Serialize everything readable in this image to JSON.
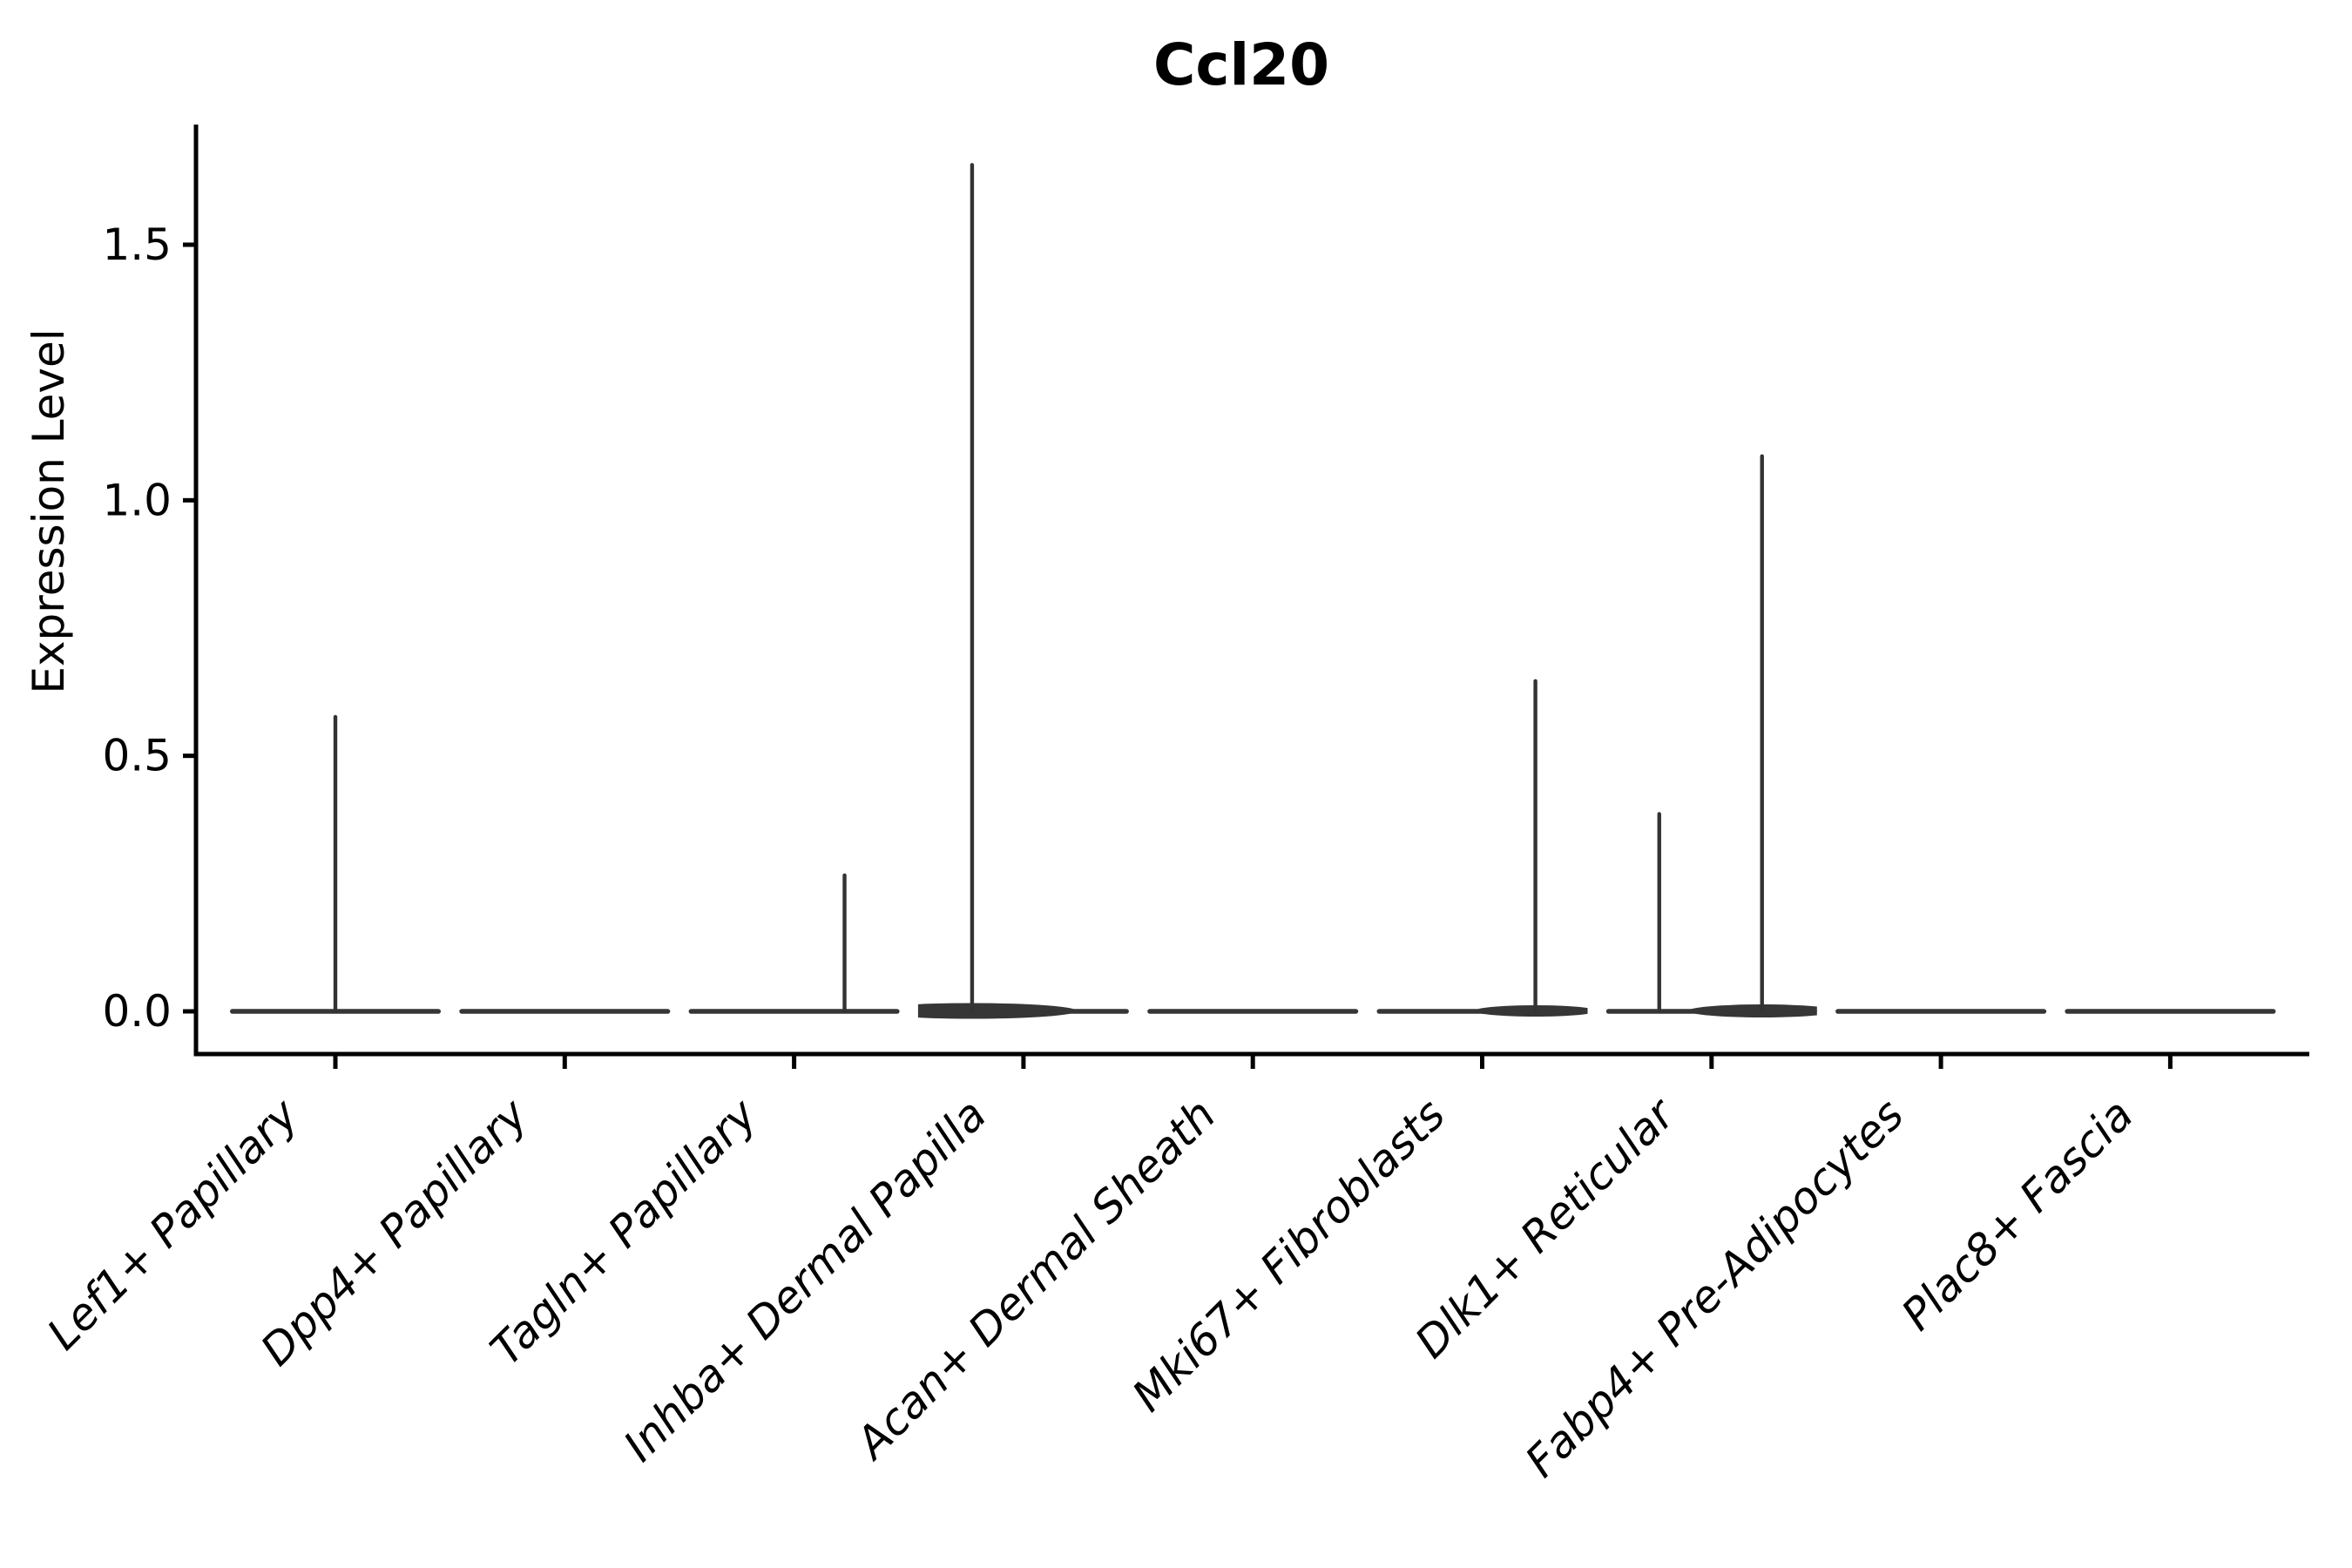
{
  "figure": {
    "title": "Ccl20"
  },
  "chart_data": {
    "type": "violin",
    "title": "Ccl20",
    "xlabel": "",
    "ylabel": "Expression Level",
    "yticks": [
      "0.0",
      "0.5",
      "1.0",
      "1.5"
    ],
    "ytick_values": [
      0.0,
      0.5,
      1.0,
      1.5
    ],
    "ylim": [
      -0.084,
      1.74
    ],
    "grid": false,
    "legend": "none",
    "x_label_rotation_deg": 45,
    "x_label_fontstyle": "italic",
    "categories": [
      "Lef1+ Papillary",
      "Dpp4+ Papillary",
      "Tagln+ Papillary",
      "Inhba+ Dermal Papilla",
      "Acan+ Dermal Sheath",
      "Mki67+ Fibroblasts",
      "Dlk1+ Reticular",
      "Fabp4+ Pre-Adipocytes",
      "Plac8+ Fascia"
    ],
    "violins": [
      {
        "category": "Lef1+ Papillary",
        "body_value": 0.0,
        "spikes": [
          {
            "slot_offset": 0.0,
            "peak_value": 0.58,
            "base_mound": "none"
          }
        ]
      },
      {
        "category": "Dpp4+ Papillary",
        "body_value": 0.0,
        "spikes": []
      },
      {
        "category": "Tagln+ Papillary",
        "body_value": 0.0,
        "spikes": [
          {
            "slot_offset": 0.22,
            "peak_value": 0.27,
            "base_mound": "none"
          }
        ]
      },
      {
        "category": "Inhba+ Dermal Papilla",
        "body_value": 0.0,
        "spikes": [
          {
            "slot_offset": -0.224,
            "peak_value": 1.66,
            "base_mound": "large"
          }
        ]
      },
      {
        "category": "Acan+ Dermal Sheath",
        "body_value": 0.0,
        "spikes": []
      },
      {
        "category": "Mki67+ Fibroblasts",
        "body_value": 0.0,
        "spikes": [
          {
            "slot_offset": 0.232,
            "peak_value": 0.65,
            "base_mound": "small"
          }
        ]
      },
      {
        "category": "Dlk1+ Reticular",
        "body_value": 0.0,
        "spikes": [
          {
            "slot_offset": -0.228,
            "peak_value": 0.39,
            "base_mound": "none"
          },
          {
            "slot_offset": 0.22,
            "peak_value": 1.09,
            "base_mound": "medium"
          }
        ]
      },
      {
        "category": "Fabp4+ Pre-Adipocytes",
        "body_value": 0.0,
        "spikes": []
      },
      {
        "category": "Plac8+ Fascia",
        "body_value": 0.0,
        "spikes": []
      }
    ],
    "colors": {
      "violin": "#363636",
      "spike": "#333333",
      "axis": "#000000",
      "text": "#000000",
      "background": "#ffffff"
    }
  }
}
